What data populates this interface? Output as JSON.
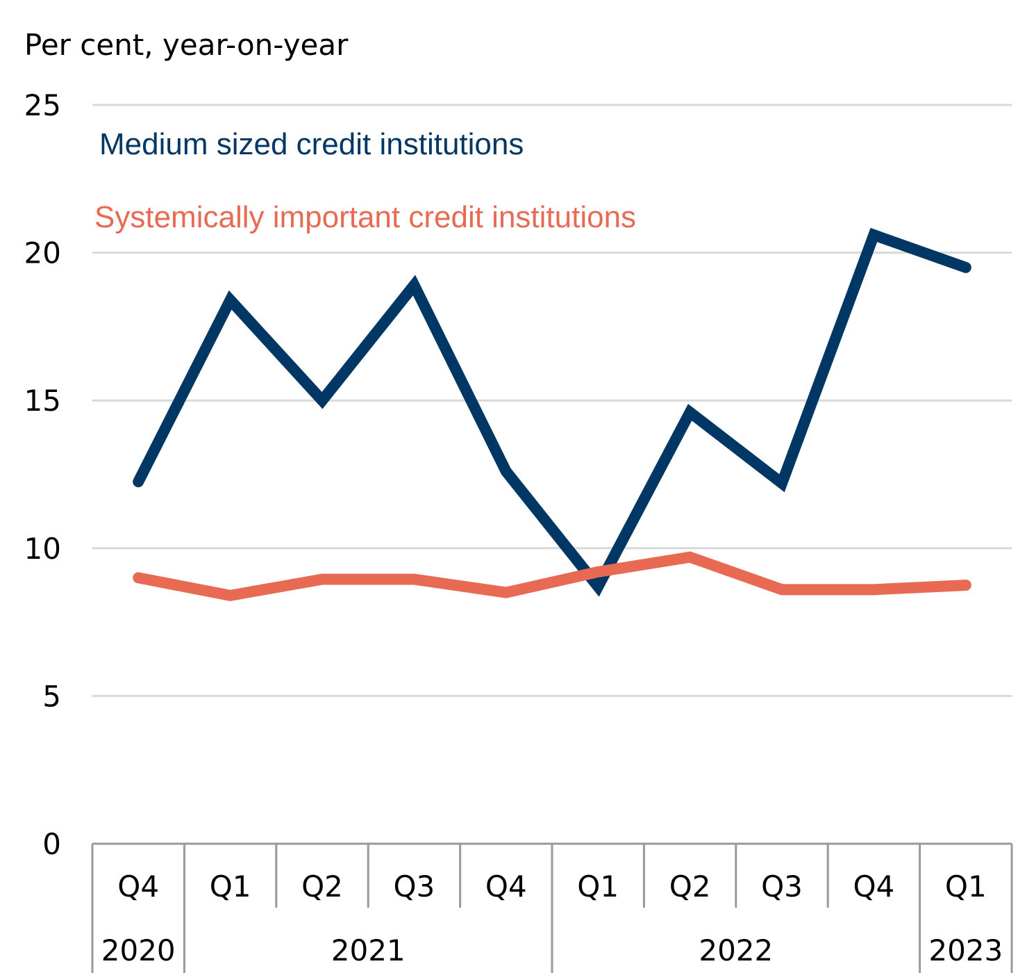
{
  "chart_data": {
    "type": "line",
    "ylabel": "Per cent, year-on-year",
    "ylim": [
      0,
      25
    ],
    "yticks": [
      "0",
      "5",
      "10",
      "15",
      "20",
      "25"
    ],
    "categories": [
      "Q4",
      "Q1",
      "Q2",
      "Q3",
      "Q4",
      "Q1",
      "Q2",
      "Q3",
      "Q4",
      "Q1"
    ],
    "years": [
      {
        "label": "2020",
        "span": 1
      },
      {
        "label": "2021",
        "span": 4
      },
      {
        "label": "2022",
        "span": 4
      },
      {
        "label": "2023",
        "span": 1
      }
    ],
    "grid": true,
    "legend_placement": "top-left",
    "series": [
      {
        "name": "Medium sized credit institutions",
        "color": "#003764",
        "values": [
          12.25,
          18.4,
          15.0,
          18.9,
          12.6,
          8.7,
          14.6,
          12.2,
          20.6,
          19.5
        ]
      },
      {
        "name": "Systemically important credit institutions",
        "color": "#E96A52",
        "values": [
          9.0,
          8.4,
          8.95,
          8.95,
          8.5,
          9.2,
          9.7,
          8.6,
          8.6,
          8.75
        ]
      }
    ]
  }
}
